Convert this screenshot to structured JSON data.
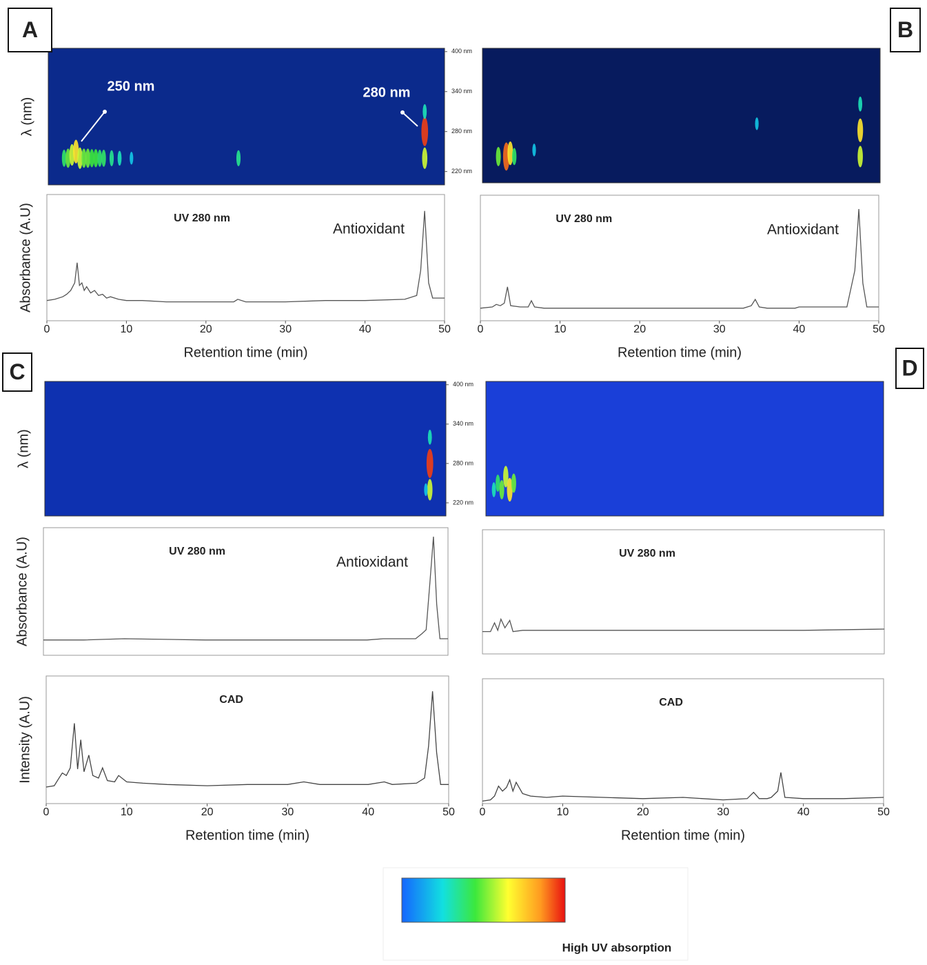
{
  "chart_data": [
    {
      "type": "heatmap",
      "panel": "A",
      "ylabel": "λ (nm)",
      "annotations": [
        "250 nm",
        "280 nm"
      ],
      "xlim": [
        0,
        50
      ],
      "ylim": [
        200,
        405
      ],
      "yticks": [
        {
          "value": 400,
          "label": "400 nm"
        },
        {
          "value": 340,
          "label": "340 nm"
        },
        {
          "value": 280,
          "label": "280 nm"
        },
        {
          "value": 220,
          "label": "220 nm"
        }
      ],
      "x": [
        2,
        2.5,
        3,
        3.5,
        4,
        4.5,
        5,
        5.5,
        6,
        6.5,
        7,
        8,
        9,
        10.5,
        24,
        47.5,
        47.5,
        47.5
      ],
      "y": [
        240,
        240,
        245,
        250,
        240,
        240,
        240,
        240,
        240,
        240,
        240,
        240,
        240,
        240,
        240,
        280,
        240,
        310
      ],
      "values": [
        0.4,
        0.5,
        0.6,
        0.7,
        0.6,
        0.5,
        0.5,
        0.45,
        0.45,
        0.4,
        0.4,
        0.35,
        0.3,
        0.2,
        0.35,
        0.95,
        0.6,
        0.3
      ]
    },
    {
      "type": "line",
      "title": "UV 280 nm",
      "annotation": "Antioxidant",
      "ylabel": "Absorbance (A.U)",
      "xlabel": "Retention time (min)",
      "color": "#555555",
      "xlim": [
        0,
        50
      ],
      "ylim": [
        0,
        100
      ],
      "xticks": [
        0,
        10,
        20,
        30,
        40,
        50
      ],
      "x": [
        0,
        1,
        2,
        2.5,
        3,
        3.5,
        3.8,
        4.1,
        4.4,
        4.7,
        5,
        5.5,
        6,
        6.5,
        7,
        7.5,
        8,
        9,
        10,
        12,
        15,
        20,
        23.5,
        24,
        25,
        30,
        35,
        40,
        45,
        46.5,
        47,
        47.5,
        48,
        48.5,
        50
      ],
      "values": [
        16,
        17,
        19,
        21,
        24,
        30,
        46,
        28,
        30,
        24,
        27,
        22,
        24,
        20,
        21,
        18,
        19,
        17,
        16,
        16,
        15,
        15,
        15,
        17,
        15,
        15,
        16,
        16,
        17,
        20,
        40,
        87,
        30,
        18,
        18
      ]
    },
    {
      "type": "heatmap",
      "panel": "B",
      "xlim": [
        0,
        50
      ],
      "ylim": [
        200,
        405
      ],
      "x": [
        2,
        3,
        3.5,
        4,
        6.5,
        34.5,
        47.5,
        47.5,
        47.5
      ],
      "y": [
        240,
        240,
        245,
        240,
        250,
        290,
        280,
        240,
        320
      ],
      "values": [
        0.5,
        0.9,
        0.7,
        0.4,
        0.2,
        0.2,
        0.7,
        0.6,
        0.3
      ]
    },
    {
      "type": "line",
      "title": "UV 280 nm",
      "annotation": "Antioxidant",
      "xlabel": "Retention time (min)",
      "color": "#555555",
      "xlim": [
        0,
        50
      ],
      "ylim": [
        0,
        100
      ],
      "xticks": [
        0,
        10,
        20,
        30,
        40,
        50
      ],
      "x": [
        0,
        1.5,
        2,
        2.5,
        3,
        3.4,
        3.8,
        5,
        6,
        6.4,
        6.8,
        8,
        20,
        33,
        34,
        34.5,
        35,
        36,
        39.5,
        40,
        46,
        47,
        47.5,
        48,
        48.5,
        50
      ],
      "values": [
        10,
        11,
        13,
        12,
        14,
        27,
        12,
        11,
        11,
        16,
        11,
        10,
        10,
        10,
        12,
        17,
        11,
        10,
        10,
        11,
        11,
        40,
        89,
        30,
        11,
        11
      ]
    },
    {
      "type": "heatmap",
      "panel": "C",
      "ylabel": "λ (nm)",
      "xlim": [
        0,
        50
      ],
      "ylim": [
        200,
        405
      ],
      "yticks": [
        {
          "value": 400,
          "label": "400 nm"
        },
        {
          "value": 340,
          "label": "340 nm"
        },
        {
          "value": 280,
          "label": "280 nm"
        },
        {
          "value": 220,
          "label": "220 nm"
        }
      ],
      "x": [
        48,
        48,
        48,
        47.5
      ],
      "y": [
        280,
        240,
        320,
        240
      ],
      "values": [
        0.95,
        0.6,
        0.3,
        0.2
      ]
    },
    {
      "type": "line",
      "title": "UV 280 nm",
      "annotation": "Antioxidant",
      "ylabel": "Absorbance (A.U)",
      "color": "#555555",
      "xlim": [
        0,
        50
      ],
      "ylim": [
        0,
        100
      ],
      "x": [
        0,
        5,
        10,
        20,
        30,
        40,
        42,
        46,
        46.8,
        47.3,
        47.8,
        48.2,
        48.6,
        49,
        50
      ],
      "values": [
        12,
        12,
        13,
        12,
        12,
        12,
        13,
        13,
        17,
        20,
        60,
        93,
        40,
        13,
        13
      ]
    },
    {
      "type": "line",
      "title": "CAD",
      "ylabel": "Intensity (A.U)",
      "xlabel": "Retention time (min)",
      "color": "#444444",
      "xlim": [
        0,
        50
      ],
      "ylim": [
        0,
        100
      ],
      "xticks": [
        0,
        10,
        20,
        30,
        40,
        50
      ],
      "x": [
        0,
        1,
        1.5,
        2,
        2.5,
        3,
        3.5,
        3.9,
        4.3,
        4.7,
        5.3,
        5.8,
        6.5,
        7,
        7.6,
        8.5,
        9,
        10,
        12,
        15,
        20,
        25,
        30,
        32,
        34,
        40,
        42,
        43,
        46,
        47,
        47.5,
        48,
        48.5,
        49,
        50
      ],
      "values": [
        13,
        14,
        19,
        24,
        22,
        28,
        63,
        27,
        50,
        25,
        38,
        22,
        20,
        28,
        18,
        17,
        22,
        17,
        16,
        15,
        14,
        15,
        15,
        17,
        15,
        15,
        17,
        15,
        16,
        20,
        45,
        88,
        40,
        15,
        15
      ]
    },
    {
      "type": "heatmap",
      "panel": "D",
      "xlim": [
        0,
        50
      ],
      "ylim": [
        200,
        405
      ],
      "x": [
        1,
        1.5,
        2,
        2.5,
        3,
        3.5
      ],
      "y": [
        240,
        250,
        240,
        260,
        240,
        250
      ],
      "values": [
        0.3,
        0.4,
        0.5,
        0.6,
        0.7,
        0.5
      ]
    },
    {
      "type": "line",
      "title": "UV 280 nm",
      "color": "#555555",
      "xlim": [
        0,
        50
      ],
      "ylim": [
        0,
        100
      ],
      "x": [
        0,
        1,
        1.5,
        1.9,
        2.3,
        2.8,
        3.4,
        3.8,
        5,
        20,
        40,
        50
      ],
      "values": [
        18,
        18,
        25,
        19,
        28,
        21,
        27,
        18,
        19,
        19,
        19,
        20
      ]
    },
    {
      "type": "line",
      "title": "CAD",
      "xlabel": "Retention time (min)",
      "color": "#444444",
      "xlim": [
        0,
        50
      ],
      "ylim": [
        0,
        100
      ],
      "xticks": [
        0,
        10,
        20,
        30,
        40,
        50
      ],
      "x": [
        0,
        1,
        1.5,
        2,
        2.5,
        3,
        3.4,
        3.8,
        4.2,
        5,
        6,
        8,
        10,
        15,
        20,
        25,
        30,
        33,
        33.8,
        34.5,
        35.5,
        36,
        36.8,
        37.2,
        37.7,
        40,
        45,
        50
      ],
      "values": [
        2,
        3,
        6,
        14,
        10,
        13,
        19,
        10,
        17,
        8,
        6,
        5,
        6,
        5,
        4,
        5,
        3,
        4,
        9,
        4,
        4,
        5,
        10,
        25,
        5,
        4,
        4,
        5
      ]
    }
  ],
  "colorbar_label": "High UV absorption"
}
